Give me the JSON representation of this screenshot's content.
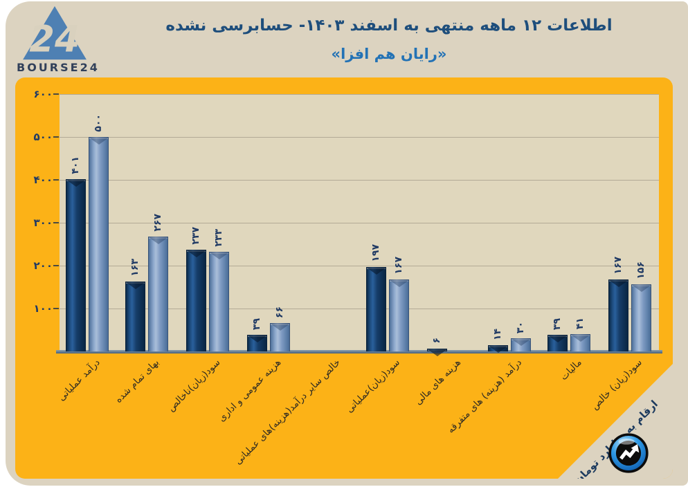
{
  "logo": {
    "mark": "24",
    "brand": "BOURSE24",
    "icon": "triangle-24-logo"
  },
  "footer": {
    "logo_icon": "trend-up-arrow-ball"
  },
  "colors": {
    "panel_orange": "#fcb217",
    "card_beige": "#dcd3c0",
    "plot_beige": "#e0d7bd",
    "bar_dark": "#123a63",
    "bar_light": "#7e9bc3",
    "title_blue": "#1e4e7c",
    "subtitle_blue": "#2372b5",
    "label_navy": "#203a64"
  },
  "chart_data": {
    "type": "bar",
    "title": "اطلاعات ۱۲ ماهه منتهی به اسفند ۱۴۰۳- حسابرسی نشده",
    "subtitle": "«رایان هم افزا»",
    "unit_note": "ارقام به میلیارد تومان",
    "categories": [
      "درآمد عملیاتی",
      "بهای تمام شده",
      "سود(زیان)ناخالص",
      "هزینه عمومی و اداری",
      "خالص سایر درآمد(هزینه)های عملیاتی",
      "سود(زیان)عملیاتی",
      "هزینه های مالی",
      "درآمد (هزینه) های متفرقه",
      "مالیات",
      "سود(زیان) خالص"
    ],
    "series": [
      {
        "name": "dark-navy-bars",
        "color": "#123a63",
        "values": [
          401,
          163,
          237,
          39,
          null,
          197,
          6,
          14,
          39,
          167
        ],
        "value_labels_fa": [
          "۴۰۱",
          "۱۶۳",
          "۲۳۷",
          "۳۹",
          null,
          "۱۹۷",
          "۶",
          "۱۴",
          "۳۹",
          "۱۶۷"
        ]
      },
      {
        "name": "light-blue-bars",
        "color": "#7e9bc3",
        "values": [
          500,
          267,
          233,
          66,
          null,
          167,
          null,
          30,
          41,
          156
        ],
        "value_labels_fa": [
          "۵۰۰",
          "۲۶۷",
          "۲۳۳",
          "۶۶",
          null,
          "۱۶۷",
          null,
          "۳۰",
          "۴۱",
          "۱۵۶"
        ]
      }
    ],
    "xlabel": "",
    "ylabel": "",
    "ylim": [
      0,
      600
    ],
    "yticks": [
      600,
      500,
      400,
      300,
      200,
      100
    ],
    "ytick_labels_fa": [
      "۶۰۰",
      "۵۰۰",
      "۴۰۰",
      "۳۰۰",
      "۲۰۰",
      "۱۰۰"
    ],
    "grid": true,
    "legend": "none"
  }
}
